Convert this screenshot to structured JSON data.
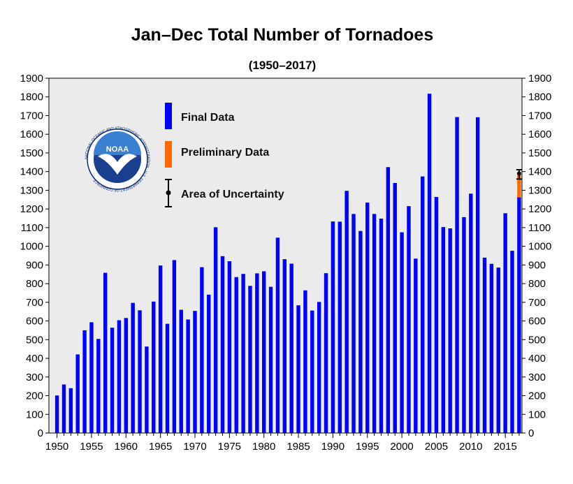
{
  "chart_data": {
    "type": "bar",
    "title": "Jan–Dec Total Number of Tornadoes",
    "subtitle": "(1950–2017)",
    "xlabel": "",
    "ylabel": "",
    "ylim": [
      0,
      1900
    ],
    "y_ticks": [
      0,
      100,
      200,
      300,
      400,
      500,
      600,
      700,
      800,
      900,
      1000,
      1100,
      1200,
      1300,
      1400,
      1500,
      1600,
      1700,
      1800,
      1900
    ],
    "x_ticks": [
      1950,
      1955,
      1960,
      1965,
      1970,
      1975,
      1980,
      1985,
      1990,
      1995,
      2000,
      2005,
      2010,
      2015
    ],
    "grid": false,
    "legend_position": "top-left",
    "legend": [
      {
        "label": "Final Data",
        "color": "#0000ff"
      },
      {
        "label": "Preliminary Data",
        "color": "#ff6a00"
      },
      {
        "label": "Area of Uncertainty",
        "color": "#000000"
      }
    ],
    "years": [
      1950,
      1951,
      1952,
      1953,
      1954,
      1955,
      1956,
      1957,
      1958,
      1959,
      1960,
      1961,
      1962,
      1963,
      1964,
      1965,
      1966,
      1967,
      1968,
      1969,
      1970,
      1971,
      1972,
      1973,
      1974,
      1975,
      1976,
      1977,
      1978,
      1979,
      1980,
      1981,
      1982,
      1983,
      1984,
      1985,
      1986,
      1987,
      1988,
      1989,
      1990,
      1991,
      1992,
      1993,
      1994,
      1995,
      1996,
      1997,
      1998,
      1999,
      2000,
      2001,
      2002,
      2003,
      2004,
      2005,
      2006,
      2007,
      2008,
      2009,
      2010,
      2011,
      2012,
      2013,
      2014,
      2015,
      2016,
      2017
    ],
    "series": [
      {
        "name": "Final Data",
        "color": "#0000ff",
        "values": [
          201,
          260,
          240,
          421,
          550,
          593,
          504,
          858,
          564,
          604,
          616,
          697,
          657,
          463,
          704,
          897,
          585,
          926,
          660,
          608,
          654,
          888,
          741,
          1102,
          947,
          920,
          835,
          852,
          788,
          855,
          866,
          783,
          1046,
          931,
          907,
          684,
          764,
          656,
          702,
          856,
          1133,
          1132,
          1297,
          1173,
          1082,
          1234,
          1173,
          1148,
          1424,
          1339,
          1075,
          1215,
          934,
          1374,
          1817,
          1264,
          1103,
          1096,
          1692,
          1156,
          1282,
          1691,
          939,
          906,
          886,
          1177,
          976,
          1262
        ]
      },
      {
        "name": "Preliminary Data",
        "color": "#ff6a00",
        "values": [
          0,
          0,
          0,
          0,
          0,
          0,
          0,
          0,
          0,
          0,
          0,
          0,
          0,
          0,
          0,
          0,
          0,
          0,
          0,
          0,
          0,
          0,
          0,
          0,
          0,
          0,
          0,
          0,
          0,
          0,
          0,
          0,
          0,
          0,
          0,
          0,
          0,
          0,
          0,
          0,
          0,
          0,
          0,
          0,
          0,
          0,
          0,
          0,
          0,
          0,
          0,
          0,
          0,
          0,
          0,
          0,
          0,
          0,
          0,
          0,
          0,
          0,
          0,
          0,
          0,
          0,
          0,
          128
        ]
      }
    ],
    "uncertainty": {
      "year": 2017,
      "center": 1390,
      "low": 1360,
      "high": 1410
    }
  },
  "logo": {
    "text": "NOAA",
    "ring_text": "NATIONAL OCEANIC AND ATMOSPHERIC ADMINISTRATION · U.S. DEPARTMENT OF COMMERCE"
  }
}
